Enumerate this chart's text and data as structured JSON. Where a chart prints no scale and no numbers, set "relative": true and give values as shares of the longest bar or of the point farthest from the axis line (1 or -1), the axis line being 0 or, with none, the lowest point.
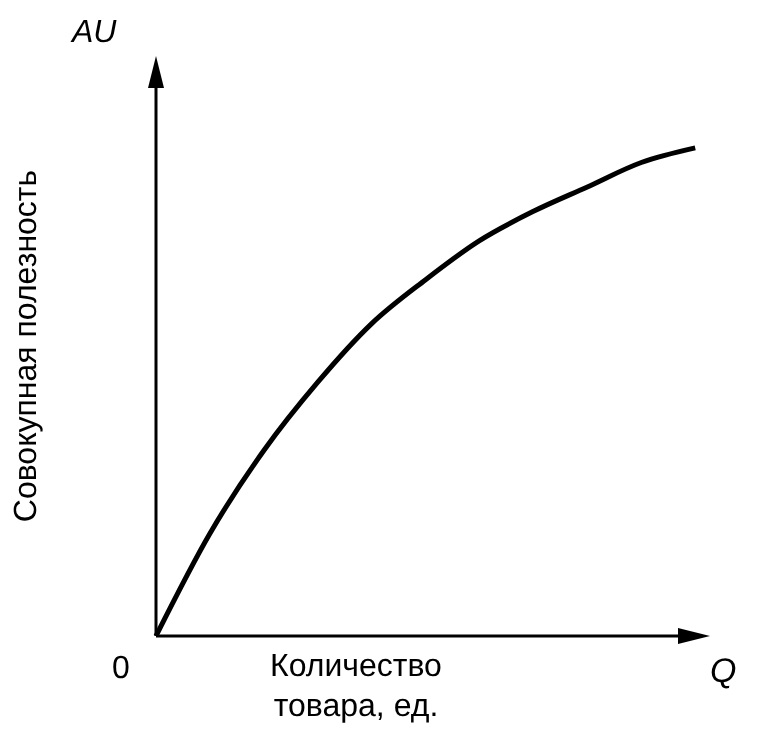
{
  "chart_data": {
    "type": "line",
    "relative": true,
    "ylabel": "Совокупная полезность",
    "xlabel": "Количество товара, ед.",
    "annotations": [
      "AU",
      "Q",
      "0"
    ],
    "categories": [
      null,
      null,
      null,
      null,
      null,
      null,
      null,
      null,
      null,
      null,
      null
    ],
    "series": [
      {
        "color": "#000000",
        "values": [
          0,
          0.21,
          0.38,
          0.52,
          0.64,
          0.73,
          0.81,
          0.87,
          0.92,
          0.97,
          1
        ]
      }
    ],
    "marker": "none",
    "line_style": "solid",
    "grid": false,
    "legend": false
  }
}
